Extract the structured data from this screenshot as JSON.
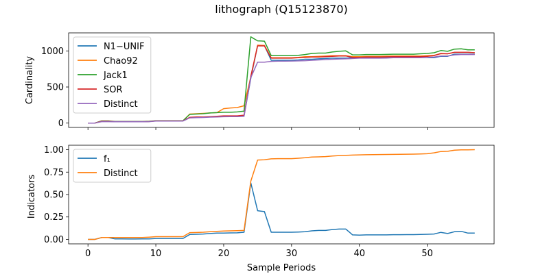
{
  "chart_data": [
    {
      "type": "line",
      "title": "lithograph (Q15123870)",
      "xlabel": "",
      "ylabel": "Cardinality",
      "xlim": [
        -2.85,
        59.85
      ],
      "ylim": [
        -60,
        1250
      ],
      "xticks": [
        0,
        10,
        20,
        30,
        40,
        50
      ],
      "yticks": [
        0,
        500,
        1000
      ],
      "grid": false,
      "legend_position": "top-left",
      "series": [
        {
          "name": "N1−UNIF",
          "color": "#1f77b4",
          "values": [
            0,
            0,
            25,
            25,
            20,
            20,
            20,
            20,
            20,
            22,
            30,
            30,
            30,
            30,
            30,
            75,
            80,
            82,
            85,
            90,
            95,
            95,
            95,
            100,
            620,
            1075,
            1075,
            870,
            870,
            870,
            870,
            875,
            885,
            885,
            890,
            895,
            900,
            900,
            900,
            905,
            905,
            905,
            905,
            905,
            905,
            905,
            905,
            905,
            905,
            905,
            905,
            905,
            925,
            925,
            955,
            955,
            955,
            955
          ]
        },
        {
          "name": "Chao92",
          "color": "#ff7f0e",
          "values": [
            0,
            0,
            25,
            25,
            20,
            20,
            20,
            20,
            20,
            22,
            30,
            30,
            30,
            30,
            30,
            125,
            130,
            135,
            140,
            145,
            200,
            210,
            215,
            240,
            640,
            1080,
            1075,
            905,
            905,
            905,
            905,
            910,
            920,
            920,
            925,
            930,
            935,
            935,
            935,
            920,
            920,
            925,
            925,
            925,
            928,
            930,
            930,
            930,
            930,
            930,
            935,
            940,
            960,
            960,
            980,
            980,
            980,
            975
          ]
        },
        {
          "name": "Jack1",
          "color": "#2ca02c",
          "values": [
            0,
            0,
            30,
            30,
            22,
            22,
            22,
            22,
            22,
            25,
            32,
            32,
            32,
            32,
            32,
            120,
            125,
            130,
            140,
            145,
            150,
            150,
            155,
            165,
            1195,
            1140,
            1135,
            935,
            935,
            935,
            935,
            940,
            950,
            965,
            970,
            970,
            985,
            995,
            1000,
            945,
            945,
            950,
            950,
            950,
            952,
            955,
            955,
            955,
            955,
            960,
            965,
            975,
            1005,
            995,
            1025,
            1030,
            1015,
            1015
          ]
        },
        {
          "name": "SOR",
          "color": "#d62728",
          "values": [
            0,
            0,
            25,
            25,
            20,
            20,
            20,
            20,
            20,
            22,
            30,
            30,
            30,
            30,
            30,
            80,
            85,
            85,
            90,
            95,
            100,
            100,
            100,
            110,
            650,
            1070,
            1070,
            900,
            900,
            900,
            900,
            905,
            910,
            915,
            915,
            920,
            925,
            930,
            930,
            910,
            910,
            915,
            915,
            915,
            918,
            920,
            920,
            920,
            920,
            920,
            925,
            935,
            965,
            960,
            980,
            980,
            980,
            975
          ]
        },
        {
          "name": "Distinct",
          "color": "#9467bd",
          "values": [
            0,
            0,
            20,
            20,
            18,
            18,
            18,
            18,
            18,
            20,
            28,
            28,
            28,
            28,
            28,
            72,
            75,
            78,
            82,
            85,
            88,
            90,
            90,
            95,
            630,
            845,
            845,
            855,
            858,
            858,
            860,
            862,
            865,
            870,
            875,
            880,
            885,
            888,
            890,
            895,
            900,
            900,
            900,
            900,
            902,
            905,
            905,
            905,
            905,
            905,
            908,
            915,
            930,
            930,
            945,
            950,
            950,
            950
          ]
        }
      ]
    },
    {
      "type": "line",
      "title": "",
      "xlabel": "Sample Periods",
      "ylabel": "Indicators",
      "xlim": [
        -2.85,
        59.85
      ],
      "ylim": [
        -0.05,
        1.05
      ],
      "xticks": [
        0,
        10,
        20,
        30,
        40,
        50
      ],
      "yticks": [
        0.0,
        0.25,
        0.5,
        0.75,
        1.0
      ],
      "grid": false,
      "legend_position": "top-left",
      "series": [
        {
          "name": "f₁",
          "color": "#1f77b4",
          "values": [
            0.0,
            0.0,
            0.02,
            0.02,
            0.005,
            0.005,
            0.004,
            0.004,
            0.005,
            0.006,
            0.01,
            0.01,
            0.01,
            0.01,
            0.01,
            0.055,
            0.057,
            0.06,
            0.065,
            0.07,
            0.07,
            0.072,
            0.073,
            0.08,
            0.63,
            0.32,
            0.31,
            0.08,
            0.08,
            0.08,
            0.08,
            0.082,
            0.085,
            0.095,
            0.1,
            0.1,
            0.11,
            0.115,
            0.115,
            0.05,
            0.048,
            0.05,
            0.05,
            0.05,
            0.05,
            0.052,
            0.052,
            0.053,
            0.053,
            0.055,
            0.057,
            0.06,
            0.078,
            0.065,
            0.085,
            0.09,
            0.07,
            0.07
          ]
        },
        {
          "name": "Distinct",
          "color": "#ff7f0e",
          "values": [
            0.0,
            0.0,
            0.02,
            0.02,
            0.02,
            0.02,
            0.02,
            0.02,
            0.02,
            0.025,
            0.03,
            0.03,
            0.03,
            0.03,
            0.03,
            0.075,
            0.077,
            0.08,
            0.085,
            0.09,
            0.093,
            0.095,
            0.097,
            0.1,
            0.65,
            0.885,
            0.888,
            0.898,
            0.9,
            0.9,
            0.9,
            0.905,
            0.91,
            0.918,
            0.92,
            0.923,
            0.93,
            0.935,
            0.937,
            0.94,
            0.942,
            0.944,
            0.945,
            0.946,
            0.947,
            0.948,
            0.949,
            0.95,
            0.951,
            0.952,
            0.955,
            0.965,
            0.98,
            0.982,
            0.995,
            0.998,
            0.999,
            1.0
          ]
        }
      ]
    }
  ]
}
